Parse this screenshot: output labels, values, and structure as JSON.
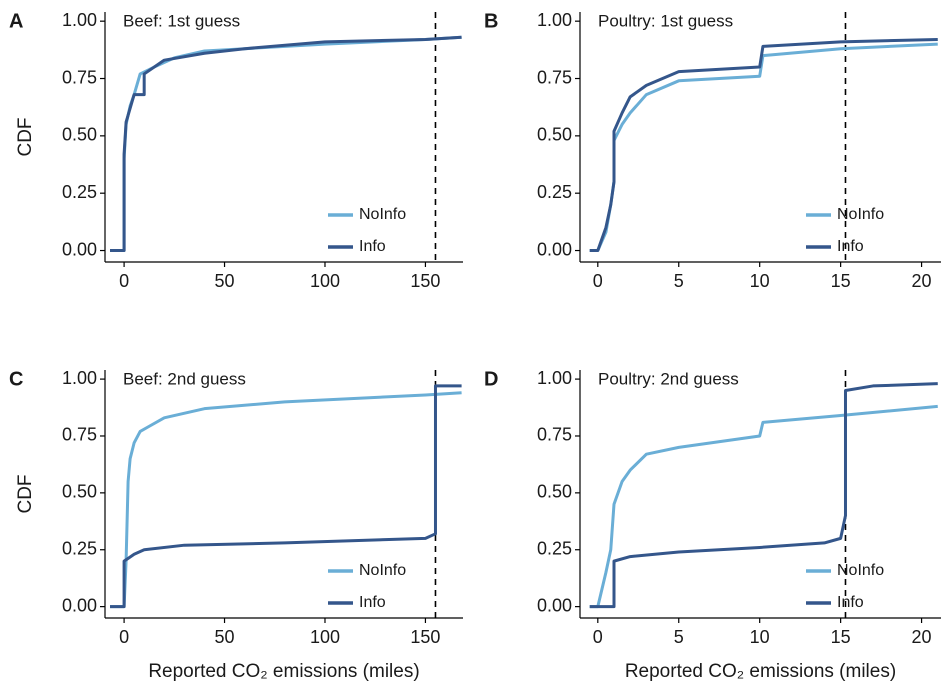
{
  "chart_data": [
    {
      "type": "line",
      "panel_label": "A",
      "title": "Beef: 1st guess",
      "y_label": "CDF",
      "xlim": [
        -9.5,
        168.7
      ],
      "ylim": [
        -0.05,
        1.04
      ],
      "xticks": [
        0,
        50,
        100,
        150
      ],
      "yticks": [
        {
          "value": 0,
          "label": "0.00"
        },
        {
          "value": 0.25,
          "label": "0.25"
        },
        {
          "value": 0.5,
          "label": "0.50"
        },
        {
          "value": 0.75,
          "label": "0.75"
        },
        {
          "value": 1,
          "label": "1.00"
        }
      ],
      "vline": 155,
      "series": [
        {
          "name": "NoInfo",
          "color": "#6aaed6",
          "x": [
            -7,
            0,
            0,
            1,
            3,
            5,
            8,
            15,
            25,
            40,
            60,
            100,
            150,
            168
          ],
          "values": [
            0,
            0,
            0.4,
            0.55,
            0.63,
            0.68,
            0.77,
            0.8,
            0.84,
            0.87,
            0.88,
            0.9,
            0.92,
            0.93
          ]
        },
        {
          "name": "Info",
          "color": "#34568b",
          "x": [
            -7,
            0,
            0,
            1,
            3,
            5,
            10,
            10,
            20,
            40,
            60,
            100,
            150,
            168
          ],
          "values": [
            0,
            0,
            0.42,
            0.56,
            0.62,
            0.68,
            0.68,
            0.77,
            0.83,
            0.86,
            0.88,
            0.91,
            0.92,
            0.93
          ]
        }
      ]
    },
    {
      "type": "line",
      "panel_label": "B",
      "title": "Poultry: 1st guess",
      "xlim": [
        -1.1,
        21.2
      ],
      "ylim": [
        -0.05,
        1.04
      ],
      "xticks": [
        0,
        5,
        10,
        15,
        20
      ],
      "yticks": [
        {
          "value": 0,
          "label": "0.00"
        },
        {
          "value": 0.25,
          "label": "0.25"
        },
        {
          "value": 0.5,
          "label": "0.50"
        },
        {
          "value": 0.75,
          "label": "0.75"
        },
        {
          "value": 1,
          "label": "1.00"
        }
      ],
      "vline": 15.3,
      "series": [
        {
          "name": "NoInfo",
          "color": "#6aaed6",
          "x": [
            -0.5,
            0,
            0.5,
            0.8,
            1,
            1,
            1.5,
            2,
            3,
            5,
            10,
            10.2,
            15,
            21
          ],
          "values": [
            0,
            0,
            0.08,
            0.2,
            0.3,
            0.48,
            0.55,
            0.6,
            0.68,
            0.74,
            0.76,
            0.85,
            0.88,
            0.9
          ]
        },
        {
          "name": "Info",
          "color": "#34568b",
          "x": [
            -0.5,
            0,
            0.5,
            0.8,
            1,
            1,
            1.5,
            2,
            3,
            5,
            10,
            10.2,
            15,
            21
          ],
          "values": [
            0,
            0,
            0.1,
            0.2,
            0.3,
            0.52,
            0.6,
            0.67,
            0.72,
            0.78,
            0.8,
            0.89,
            0.91,
            0.92
          ]
        }
      ]
    },
    {
      "type": "line",
      "panel_label": "C",
      "title": "Beef: 2nd guess",
      "y_label": "CDF",
      "x_label": "Reported CO₂ emissions (miles)",
      "xlim": [
        -9.5,
        168.7
      ],
      "ylim": [
        -0.05,
        1.04
      ],
      "xticks": [
        0,
        50,
        100,
        150
      ],
      "yticks": [
        {
          "value": 0,
          "label": "0.00"
        },
        {
          "value": 0.25,
          "label": "0.25"
        },
        {
          "value": 0.5,
          "label": "0.50"
        },
        {
          "value": 0.75,
          "label": "0.75"
        },
        {
          "value": 1,
          "label": "1.00"
        }
      ],
      "vline": 155,
      "series": [
        {
          "name": "NoInfo",
          "color": "#6aaed6",
          "x": [
            -7,
            0,
            1,
            2,
            3,
            5,
            8,
            12,
            20,
            40,
            80,
            150,
            168
          ],
          "values": [
            0,
            0,
            0.2,
            0.55,
            0.65,
            0.72,
            0.77,
            0.79,
            0.83,
            0.87,
            0.9,
            0.93,
            0.94
          ]
        },
        {
          "name": "Info",
          "color": "#34568b",
          "x": [
            -7,
            0,
            0,
            5,
            10,
            30,
            80,
            150,
            155,
            155,
            168
          ],
          "values": [
            0,
            0,
            0.2,
            0.23,
            0.25,
            0.27,
            0.28,
            0.3,
            0.32,
            0.97,
            0.97
          ]
        }
      ]
    },
    {
      "type": "line",
      "panel_label": "D",
      "title": "Poultry: 2nd guess",
      "x_label": "Reported CO₂ emissions (miles)",
      "xlim": [
        -1.1,
        21.2
      ],
      "ylim": [
        -0.05,
        1.04
      ],
      "xticks": [
        0,
        5,
        10,
        15,
        20
      ],
      "yticks": [
        {
          "value": 0,
          "label": "0.00"
        },
        {
          "value": 0.25,
          "label": "0.25"
        },
        {
          "value": 0.5,
          "label": "0.50"
        },
        {
          "value": 0.75,
          "label": "0.75"
        },
        {
          "value": 1,
          "label": "1.00"
        }
      ],
      "vline": 15.3,
      "series": [
        {
          "name": "NoInfo",
          "color": "#6aaed6",
          "x": [
            -0.5,
            0,
            0.5,
            0.8,
            1,
            1.5,
            2,
            3,
            5,
            10,
            10.2,
            15,
            21
          ],
          "values": [
            0,
            0,
            0.15,
            0.25,
            0.45,
            0.55,
            0.6,
            0.67,
            0.7,
            0.75,
            0.81,
            0.84,
            0.88
          ]
        },
        {
          "name": "Info",
          "color": "#34568b",
          "x": [
            -0.5,
            1,
            1,
            2,
            5,
            10,
            14,
            15,
            15.3,
            15.3,
            17,
            21
          ],
          "values": [
            0,
            0,
            0.2,
            0.22,
            0.24,
            0.26,
            0.28,
            0.3,
            0.4,
            0.95,
            0.97,
            0.98
          ]
        }
      ]
    }
  ]
}
